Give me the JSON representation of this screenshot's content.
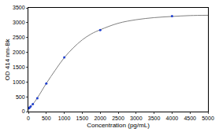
{
  "chart_data": {
    "type": "scatter",
    "x_label": "Concentration (pg/mL)",
    "y_label": "OD 414 nm-Bk",
    "xlim": [
      0,
      5000
    ],
    "xticks": [
      0,
      500,
      1000,
      1500,
      2000,
      2500,
      3000,
      3500,
      4000,
      4500,
      5000
    ],
    "ylim": [
      0,
      3500
    ],
    "yticks": [
      0,
      500,
      1000,
      1500,
      2000,
      2500,
      3000,
      3500
    ],
    "grid": false,
    "series": [
      {
        "type": "line",
        "color": "#808080",
        "line_style": "solid",
        "x": [
          0,
          125,
          250,
          500,
          750,
          1000,
          1250,
          1500,
          1750,
          2000,
          2500,
          3000,
          3500,
          4000,
          4500,
          5000
        ],
        "values": [
          100,
          250,
          460,
          950,
          1400,
          1820,
          2150,
          2420,
          2620,
          2760,
          2980,
          3100,
          3170,
          3210,
          3240,
          3250
        ]
      },
      {
        "type": "scatter",
        "color": "#1f3fd0",
        "marker": "circle",
        "x": [
          15.6,
          31.25,
          62.5,
          125,
          250,
          500,
          1000,
          2000,
          4000
        ],
        "values": [
          110,
          130,
          170,
          250,
          450,
          950,
          1830,
          2750,
          3220
        ]
      }
    ]
  }
}
